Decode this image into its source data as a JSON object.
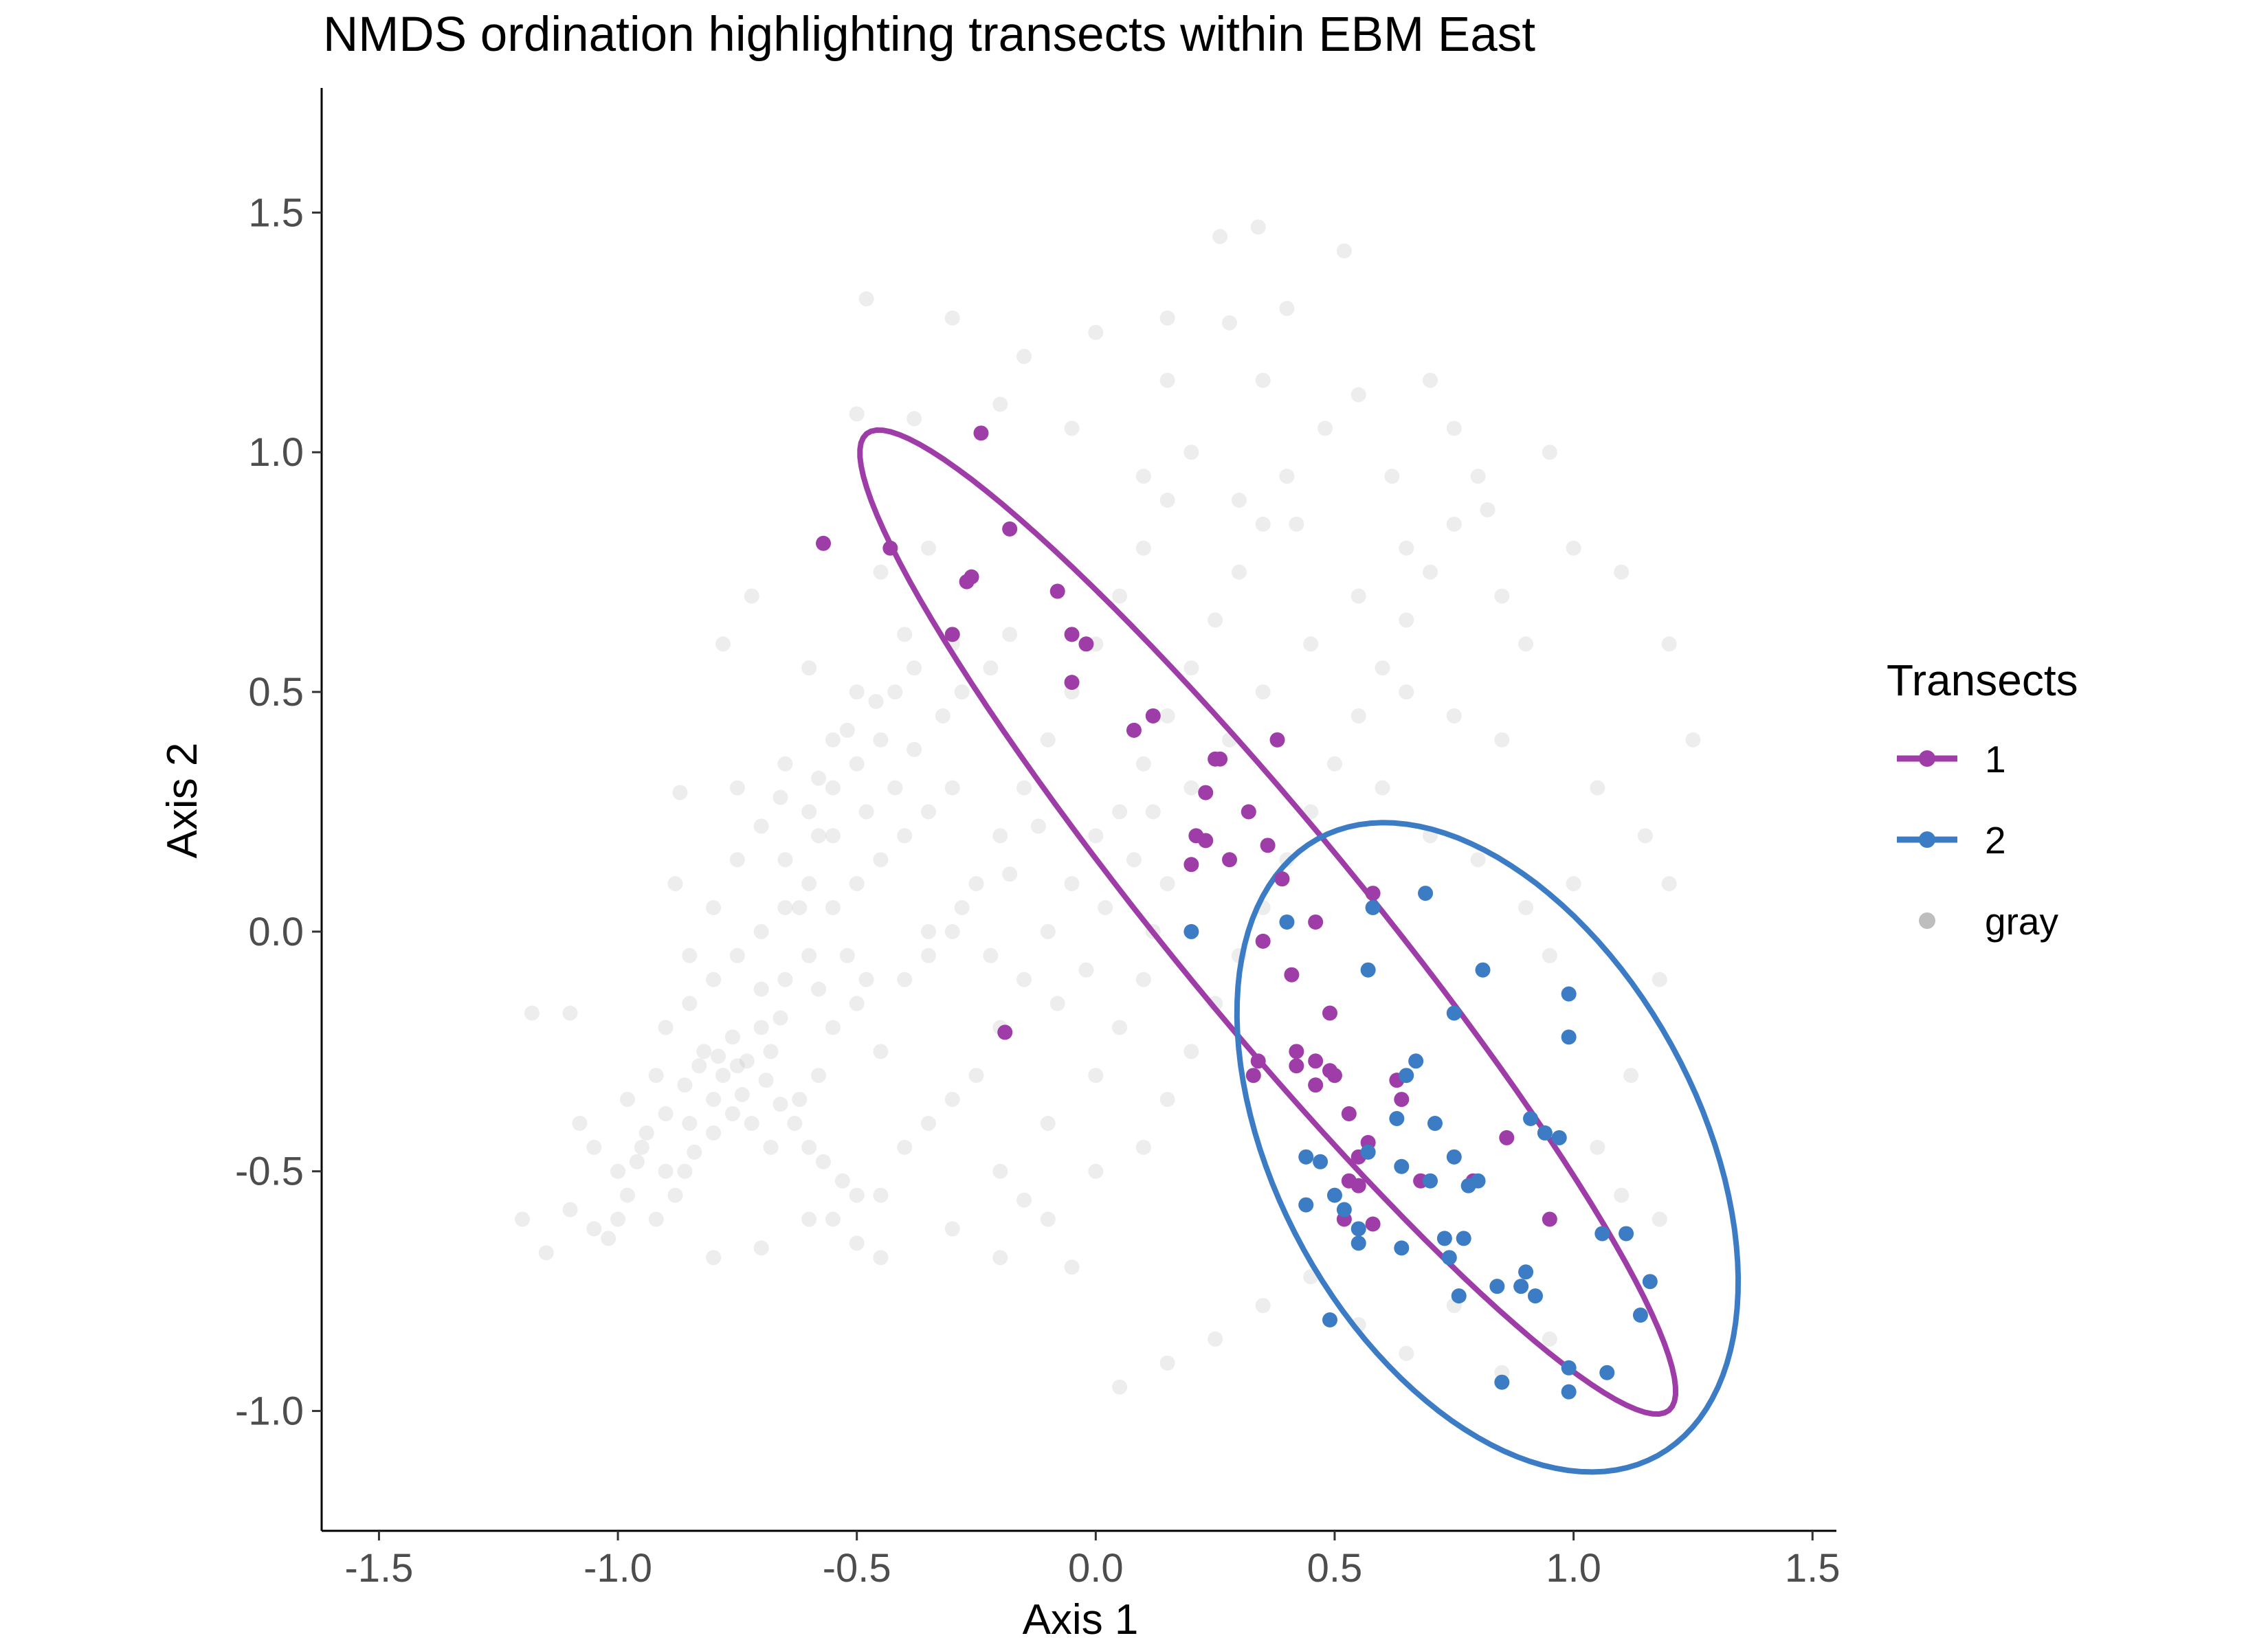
{
  "chart_data": {
    "type": "scatter",
    "title": "NMDS ordination highlighting transects within EBM East",
    "xlabel": "Axis 1",
    "ylabel": "Axis 2",
    "xlim": [
      -1.62,
      1.55
    ],
    "ylim": [
      -1.25,
      1.76
    ],
    "x_ticks": [
      -1.5,
      -1.0,
      -0.5,
      0.0,
      0.5,
      1.0,
      1.5
    ],
    "x_tick_labels": [
      "-1.5",
      "-1.0",
      "-0.5",
      "0.0",
      "0.5",
      "1.0",
      "1.5"
    ],
    "y_ticks": [
      -1.0,
      -0.5,
      0.0,
      0.5,
      1.0,
      1.5
    ],
    "y_tick_labels": [
      "-1.0",
      "-0.5",
      "0.0",
      "0.5",
      "1.0",
      "1.5"
    ],
    "grid": false,
    "legend": {
      "title": "Transects",
      "position": "right",
      "entries": [
        {
          "label": "1",
          "color": "#9E3DA8"
        },
        {
          "label": "2",
          "color": "#3B7CC4"
        },
        {
          "label": "gray",
          "color": "#BEBEBE"
        }
      ]
    },
    "background_points_color": "#BEBEBE",
    "background_points": [
      [
        -1.0,
        -0.5
      ],
      [
        -0.95,
        -0.45
      ],
      [
        -0.9,
        -0.5
      ],
      [
        -0.88,
        -0.55
      ],
      [
        -0.92,
        -0.6
      ],
      [
        -1.05,
        -0.62
      ],
      [
        -0.85,
        -0.4
      ],
      [
        -0.8,
        -0.35
      ],
      [
        -0.78,
        -0.3
      ],
      [
        -0.75,
        -0.28
      ],
      [
        -0.7,
        -0.2
      ],
      [
        -0.68,
        -0.25
      ],
      [
        -0.65,
        -0.1
      ],
      [
        -0.6,
        -0.05
      ],
      [
        -0.55,
        0.05
      ],
      [
        -0.5,
        0.1
      ],
      [
        -0.45,
        0.15
      ],
      [
        -0.4,
        0.2
      ],
      [
        -0.35,
        0.25
      ],
      [
        -0.3,
        0.3
      ],
      [
        -1.15,
        -0.67
      ],
      [
        -1.1,
        -0.58
      ],
      [
        -1.05,
        -0.45
      ],
      [
        -1.08,
        -0.4
      ],
      [
        -0.98,
        -0.35
      ],
      [
        -0.92,
        -0.3
      ],
      [
        -0.9,
        -0.2
      ],
      [
        -0.85,
        -0.15
      ],
      [
        -0.8,
        -0.1
      ],
      [
        -0.75,
        -0.05
      ],
      [
        -0.7,
        0.0
      ],
      [
        -0.65,
        0.05
      ],
      [
        -0.6,
        0.1
      ],
      [
        -0.58,
        0.2
      ],
      [
        -0.55,
        0.3
      ],
      [
        -0.5,
        0.35
      ],
      [
        -0.45,
        0.4
      ],
      [
        -0.42,
        0.5
      ],
      [
        -0.38,
        0.55
      ],
      [
        -0.3,
        0.6
      ],
      [
        -0.72,
        -0.4
      ],
      [
        -0.68,
        -0.45
      ],
      [
        -0.62,
        -0.35
      ],
      [
        -0.58,
        -0.3
      ],
      [
        -0.55,
        -0.2
      ],
      [
        -0.5,
        -0.15
      ],
      [
        -0.45,
        -0.25
      ],
      [
        -0.4,
        -0.1
      ],
      [
        -0.35,
        -0.05
      ],
      [
        -0.3,
        0.0
      ],
      [
        -0.25,
        0.1
      ],
      [
        -0.2,
        0.2
      ],
      [
        -0.15,
        0.3
      ],
      [
        -0.1,
        0.4
      ],
      [
        -0.05,
        0.5
      ],
      [
        0.0,
        0.6
      ],
      [
        0.05,
        0.7
      ],
      [
        0.1,
        0.8
      ],
      [
        0.15,
        0.9
      ],
      [
        0.2,
        1.0
      ],
      [
        -0.55,
        -0.6
      ],
      [
        -0.5,
        -0.65
      ],
      [
        -0.45,
        -0.55
      ],
      [
        -0.4,
        -0.45
      ],
      [
        -0.35,
        -0.4
      ],
      [
        -0.3,
        -0.35
      ],
      [
        -0.25,
        -0.3
      ],
      [
        -0.2,
        -0.2
      ],
      [
        -0.15,
        -0.1
      ],
      [
        -0.1,
        0.0
      ],
      [
        -0.05,
        0.1
      ],
      [
        0.0,
        0.2
      ],
      [
        0.05,
        0.25
      ],
      [
        0.1,
        0.35
      ],
      [
        0.15,
        0.45
      ],
      [
        0.2,
        0.55
      ],
      [
        0.25,
        0.65
      ],
      [
        0.3,
        0.75
      ],
      [
        0.35,
        0.85
      ],
      [
        0.4,
        0.95
      ],
      [
        -0.2,
        -0.68
      ],
      [
        -0.1,
        -0.6
      ],
      [
        0.0,
        -0.5
      ],
      [
        0.1,
        -0.45
      ],
      [
        0.15,
        -0.35
      ],
      [
        0.2,
        -0.25
      ],
      [
        0.25,
        -0.15
      ],
      [
        0.3,
        -0.05
      ],
      [
        0.35,
        0.05
      ],
      [
        0.4,
        0.15
      ],
      [
        0.45,
        0.25
      ],
      [
        0.5,
        0.35
      ],
      [
        0.55,
        0.45
      ],
      [
        0.6,
        0.55
      ],
      [
        0.65,
        0.65
      ],
      [
        0.7,
        0.75
      ],
      [
        0.75,
        0.85
      ],
      [
        0.8,
        0.95
      ],
      [
        0.85,
        0.7
      ],
      [
        0.9,
        0.6
      ],
      [
        -0.48,
        1.32
      ],
      [
        -0.3,
        1.28
      ],
      [
        -0.15,
        1.2
      ],
      [
        0.0,
        1.25
      ],
      [
        0.15,
        1.28
      ],
      [
        0.28,
        1.27
      ],
      [
        0.4,
        1.3
      ],
      [
        0.26,
        1.45
      ],
      [
        0.34,
        1.47
      ],
      [
        0.52,
        1.42
      ],
      [
        0.15,
        1.15
      ],
      [
        0.35,
        1.15
      ],
      [
        0.55,
        1.12
      ],
      [
        0.75,
        1.05
      ],
      [
        0.95,
        1.0
      ],
      [
        0.7,
        1.15
      ],
      [
        0.48,
        1.05
      ],
      [
        0.62,
        0.95
      ],
      [
        0.82,
        0.88
      ],
      [
        1.0,
        0.8
      ],
      [
        1.1,
        0.75
      ],
      [
        1.2,
        0.6
      ],
      [
        1.25,
        0.4
      ],
      [
        1.15,
        0.2
      ],
      [
        1.2,
        0.1
      ],
      [
        1.18,
        -0.1
      ],
      [
        1.12,
        -0.3
      ],
      [
        1.05,
        -0.45
      ],
      [
        1.1,
        -0.55
      ],
      [
        1.18,
        -0.6
      ],
      [
        -0.87,
        0.29
      ],
      [
        -0.75,
        0.3
      ],
      [
        -0.65,
        0.35
      ],
      [
        -0.55,
        0.4
      ],
      [
        -0.72,
        0.7
      ],
      [
        -0.78,
        0.6
      ],
      [
        -0.6,
        0.55
      ],
      [
        -0.5,
        0.5
      ],
      [
        -0.45,
        0.75
      ],
      [
        -0.35,
        0.8
      ],
      [
        -0.52,
        -0.05
      ],
      [
        -0.48,
        -0.1
      ],
      [
        -0.62,
        0.05
      ],
      [
        -0.58,
        -0.12
      ],
      [
        -0.66,
        -0.18
      ],
      [
        -0.7,
        -0.12
      ],
      [
        -0.76,
        -0.22
      ],
      [
        -0.82,
        -0.25
      ],
      [
        -0.86,
        -0.32
      ],
      [
        -0.9,
        -0.38
      ],
      [
        -0.94,
        -0.42
      ],
      [
        -0.96,
        -0.48
      ],
      [
        -0.98,
        -0.55
      ],
      [
        -1.0,
        -0.6
      ],
      [
        -1.02,
        -0.64
      ],
      [
        -0.86,
        -0.5
      ],
      [
        -0.84,
        -0.46
      ],
      [
        -0.8,
        -0.42
      ],
      [
        -0.76,
        -0.38
      ],
      [
        -0.74,
        -0.34
      ],
      [
        -0.83,
        -0.28
      ],
      [
        -0.79,
        -0.26
      ],
      [
        -0.73,
        -0.27
      ],
      [
        -0.69,
        -0.31
      ],
      [
        -0.66,
        -0.36
      ],
      [
        -0.63,
        -0.4
      ],
      [
        -0.6,
        -0.45
      ],
      [
        -0.57,
        -0.48
      ],
      [
        -0.53,
        -0.52
      ],
      [
        -0.5,
        -0.55
      ],
      [
        -1.2,
        -0.6
      ],
      [
        -1.18,
        -0.17
      ],
      [
        -1.1,
        -0.17
      ],
      [
        -0.8,
        -0.68
      ],
      [
        -0.7,
        -0.66
      ],
      [
        -0.6,
        -0.6
      ],
      [
        -0.45,
        -0.68
      ],
      [
        -0.3,
        -0.62
      ],
      [
        -0.15,
        -0.56
      ],
      [
        -0.05,
        -0.7
      ],
      [
        -0.2,
        -0.5
      ],
      [
        -0.1,
        -0.4
      ],
      [
        0.0,
        -0.3
      ],
      [
        0.05,
        -0.2
      ],
      [
        0.1,
        -0.1
      ],
      [
        0.12,
        0.0
      ],
      [
        0.15,
        0.1
      ],
      [
        0.2,
        0.3
      ],
      [
        0.28,
        0.4
      ],
      [
        0.35,
        0.5
      ],
      [
        0.45,
        0.6
      ],
      [
        0.55,
        0.7
      ],
      [
        0.65,
        0.8
      ],
      [
        0.42,
        0.85
      ],
      [
        0.3,
        0.9
      ],
      [
        0.1,
        0.95
      ],
      [
        -0.05,
        1.05
      ],
      [
        -0.2,
        1.1
      ],
      [
        -0.38,
        1.07
      ],
      [
        -0.5,
        1.08
      ],
      [
        0.6,
        0.3
      ],
      [
        0.7,
        0.2
      ],
      [
        0.8,
        0.15
      ],
      [
        0.9,
        0.05
      ],
      [
        0.95,
        -0.05
      ],
      [
        1.0,
        0.1
      ],
      [
        1.05,
        0.3
      ],
      [
        0.85,
        0.4
      ],
      [
        0.75,
        0.45
      ],
      [
        0.65,
        0.5
      ],
      [
        0.25,
        -0.85
      ],
      [
        0.35,
        -0.78
      ],
      [
        0.45,
        -0.72
      ],
      [
        0.55,
        -0.82
      ],
      [
        0.65,
        -0.88
      ],
      [
        0.75,
        -0.78
      ],
      [
        0.85,
        -0.92
      ],
      [
        0.95,
        -0.85
      ],
      [
        0.15,
        -0.9
      ],
      [
        0.05,
        -0.95
      ],
      [
        -0.35,
        0.0
      ],
      [
        -0.28,
        0.05
      ],
      [
        -0.22,
        -0.05
      ],
      [
        -0.18,
        0.12
      ],
      [
        -0.12,
        0.22
      ],
      [
        -0.08,
        -0.15
      ],
      [
        -0.02,
        -0.08
      ],
      [
        0.02,
        0.05
      ],
      [
        0.08,
        0.15
      ],
      [
        0.12,
        0.25
      ],
      [
        -0.65,
        0.15
      ],
      [
        -0.6,
        0.25
      ],
      [
        -0.55,
        0.2
      ],
      [
        -0.48,
        0.25
      ],
      [
        -0.42,
        0.3
      ],
      [
        -0.38,
        0.38
      ],
      [
        -0.32,
        0.45
      ],
      [
        -0.28,
        0.5
      ],
      [
        -0.22,
        0.55
      ],
      [
        -0.18,
        0.62
      ],
      [
        -0.75,
        0.15
      ],
      [
        -0.8,
        0.05
      ],
      [
        -0.85,
        -0.05
      ],
      [
        -0.88,
        0.1
      ],
      [
        -0.7,
        0.22
      ],
      [
        -0.66,
        0.28
      ],
      [
        -0.58,
        0.32
      ],
      [
        -0.52,
        0.42
      ],
      [
        -0.46,
        0.48
      ],
      [
        -0.4,
        0.62
      ]
    ],
    "series": [
      {
        "name": "1",
        "color": "#9E3DA8",
        "points": [
          [
            -0.57,
            0.81
          ],
          [
            -0.43,
            0.8
          ],
          [
            -0.24,
            1.04
          ],
          [
            -0.18,
            0.84
          ],
          [
            -0.26,
            0.74
          ],
          [
            -0.27,
            0.73
          ],
          [
            -0.3,
            0.62
          ],
          [
            -0.08,
            0.71
          ],
          [
            -0.05,
            0.62
          ],
          [
            -0.02,
            0.6
          ],
          [
            -0.05,
            0.52
          ],
          [
            0.08,
            0.42
          ],
          [
            0.12,
            0.45
          ],
          [
            0.26,
            0.36
          ],
          [
            0.38,
            0.4
          ],
          [
            0.25,
            0.36
          ],
          [
            0.23,
            0.29
          ],
          [
            0.32,
            0.25
          ],
          [
            0.21,
            0.2
          ],
          [
            0.23,
            0.19
          ],
          [
            0.28,
            0.15
          ],
          [
            0.2,
            0.14
          ],
          [
            0.36,
            0.18
          ],
          [
            0.39,
            0.11
          ],
          [
            0.58,
            0.08
          ],
          [
            0.46,
            0.02
          ],
          [
            0.35,
            -0.02
          ],
          [
            0.41,
            -0.09
          ],
          [
            0.42,
            -0.25
          ],
          [
            0.42,
            -0.28
          ],
          [
            0.46,
            -0.27
          ],
          [
            0.49,
            -0.29
          ],
          [
            0.46,
            -0.32
          ],
          [
            0.5,
            -0.3
          ],
          [
            0.33,
            -0.3
          ],
          [
            0.34,
            -0.27
          ],
          [
            0.49,
            -0.17
          ],
          [
            0.53,
            -0.38
          ],
          [
            0.57,
            -0.44
          ],
          [
            0.55,
            -0.47
          ],
          [
            0.64,
            -0.35
          ],
          [
            0.63,
            -0.31
          ],
          [
            0.53,
            -0.52
          ],
          [
            0.55,
            -0.53
          ],
          [
            0.52,
            -0.6
          ],
          [
            0.58,
            -0.61
          ],
          [
            0.68,
            -0.52
          ],
          [
            0.79,
            -0.52
          ],
          [
            0.86,
            -0.43
          ],
          [
            0.95,
            -0.6
          ],
          [
            -0.19,
            -0.21
          ]
        ],
        "ellipse": {
          "center": [
            0.36,
            0.02
          ],
          "semi_major": 1.32,
          "semi_minor": 0.2,
          "angle_deg": -50.5
        }
      },
      {
        "name": "2",
        "color": "#3B7CC4",
        "points": [
          [
            0.2,
            0.0
          ],
          [
            0.4,
            0.02
          ],
          [
            0.58,
            0.05
          ],
          [
            0.69,
            0.08
          ],
          [
            0.57,
            -0.08
          ],
          [
            0.81,
            -0.08
          ],
          [
            0.75,
            -0.17
          ],
          [
            0.99,
            -0.13
          ],
          [
            0.99,
            -0.22
          ],
          [
            0.67,
            -0.27
          ],
          [
            0.65,
            -0.3
          ],
          [
            0.44,
            -0.47
          ],
          [
            0.47,
            -0.48
          ],
          [
            0.57,
            -0.46
          ],
          [
            0.63,
            -0.39
          ],
          [
            0.71,
            -0.4
          ],
          [
            0.75,
            -0.47
          ],
          [
            0.91,
            -0.39
          ],
          [
            0.94,
            -0.42
          ],
          [
            0.97,
            -0.43
          ],
          [
            0.64,
            -0.49
          ],
          [
            0.7,
            -0.52
          ],
          [
            0.78,
            -0.53
          ],
          [
            0.8,
            -0.52
          ],
          [
            0.44,
            -0.57
          ],
          [
            0.5,
            -0.55
          ],
          [
            0.52,
            -0.58
          ],
          [
            0.55,
            -0.62
          ],
          [
            0.55,
            -0.65
          ],
          [
            0.64,
            -0.66
          ],
          [
            0.73,
            -0.64
          ],
          [
            0.77,
            -0.64
          ],
          [
            0.74,
            -0.68
          ],
          [
            0.9,
            -0.71
          ],
          [
            0.89,
            -0.74
          ],
          [
            0.92,
            -0.76
          ],
          [
            1.06,
            -0.63
          ],
          [
            1.11,
            -0.63
          ],
          [
            1.16,
            -0.73
          ],
          [
            1.14,
            -0.8
          ],
          [
            0.49,
            -0.81
          ],
          [
            0.76,
            -0.76
          ],
          [
            0.84,
            -0.74
          ],
          [
            0.99,
            -0.91
          ],
          [
            1.07,
            -0.92
          ],
          [
            0.99,
            -0.96
          ],
          [
            0.85,
            -0.94
          ]
        ],
        "ellipse": {
          "center": [
            0.82,
            -0.45
          ],
          "semi_major": 0.735,
          "semi_minor": 0.44,
          "angle_deg": -61
        }
      }
    ]
  }
}
